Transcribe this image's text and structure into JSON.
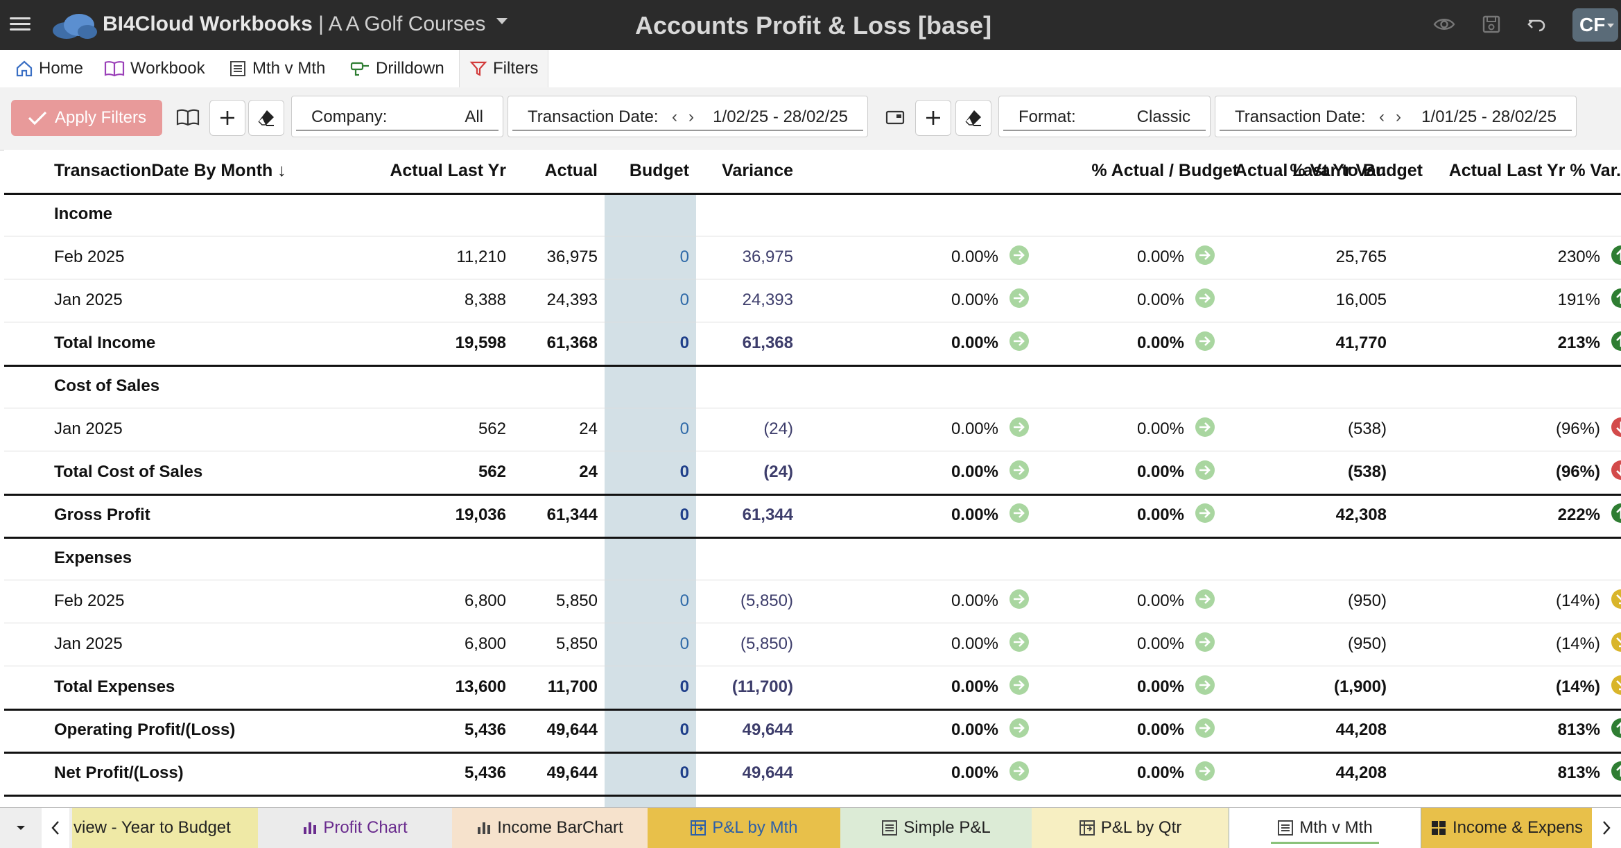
{
  "app": {
    "brand_name": "BI4Cloud Workbooks",
    "brand_separator": " | ",
    "company_name": "A A Golf Courses",
    "report_title": "Accounts Profit & Loss [base]",
    "user_initials": "CF"
  },
  "nav_tabs": [
    {
      "label": "Home",
      "icon": "home-icon"
    },
    {
      "label": "Workbook",
      "icon": "book-icon"
    },
    {
      "label": "Mth v Mth",
      "icon": "list-icon"
    },
    {
      "label": "Drilldown",
      "icon": "drill-icon"
    },
    {
      "label": "Filters",
      "icon": "filter-icon",
      "active": true
    }
  ],
  "filters": {
    "apply_label": "Apply Filters",
    "company_label": "Company:",
    "company_value": "All",
    "txn_date_label": "Transaction Date:",
    "txn_date_value": "1/02/25 - 28/02/25",
    "format_label": "Format:",
    "format_value": "Classic",
    "compare_date_label": "Transaction Date:",
    "compare_date_value": "1/01/25 - 28/02/25",
    "prev_arrow": "‹",
    "next_arrow": "›"
  },
  "table": {
    "headers": {
      "label": "TransactionDate By Month",
      "sort_arrow": "↓",
      "aly": "Actual Last Yr",
      "act": "Actual",
      "bud": "Budget",
      "var": "Variance",
      "pab": "% Actual / Budget",
      "pvb": "% Var to Budget",
      "alv": "Actual Last Yr Var.",
      "alp": "Actual Last Yr % Var."
    },
    "rows": [
      {
        "type": "section",
        "label": "Income"
      },
      {
        "type": "line",
        "label": "Feb 2025",
        "aly": "11,210",
        "act": "36,975",
        "bud": "0",
        "var": "36,975",
        "pab": "0.00%",
        "pvb": "0.00%",
        "alv": "25,765",
        "alp": "230%",
        "alp_status": "up"
      },
      {
        "type": "line",
        "label": "Jan 2025",
        "aly": "8,388",
        "act": "24,393",
        "bud": "0",
        "var": "24,393",
        "pab": "0.00%",
        "pvb": "0.00%",
        "alv": "16,005",
        "alp": "191%",
        "alp_status": "up"
      },
      {
        "type": "total",
        "label": "Total Income",
        "aly": "19,598",
        "act": "61,368",
        "bud": "0",
        "var": "61,368",
        "pab": "0.00%",
        "pvb": "0.00%",
        "alv": "41,770",
        "alp": "213%",
        "alp_status": "up"
      },
      {
        "type": "section",
        "label": "Cost of Sales"
      },
      {
        "type": "line",
        "label": "Jan 2025",
        "aly": "562",
        "act": "24",
        "bud": "0",
        "var": "(24)",
        "pab": "0.00%",
        "pvb": "0.00%",
        "alv": "(538)",
        "alp": "(96%)",
        "alp_status": "down"
      },
      {
        "type": "total",
        "label": "Total Cost of Sales",
        "aly": "562",
        "act": "24",
        "bud": "0",
        "var": "(24)",
        "pab": "0.00%",
        "pvb": "0.00%",
        "alv": "(538)",
        "alp": "(96%)",
        "alp_status": "down"
      },
      {
        "type": "total",
        "label": "Gross Profit",
        "aly": "19,036",
        "act": "61,344",
        "bud": "0",
        "var": "61,344",
        "pab": "0.00%",
        "pvb": "0.00%",
        "alv": "42,308",
        "alp": "222%",
        "alp_status": "up"
      },
      {
        "type": "section",
        "label": "Expenses"
      },
      {
        "type": "line",
        "label": "Feb 2025",
        "aly": "6,800",
        "act": "5,850",
        "bud": "0",
        "var": "(5,850)",
        "pab": "0.00%",
        "pvb": "0.00%",
        "alv": "(950)",
        "alp": "(14%)",
        "alp_status": "warn"
      },
      {
        "type": "line",
        "label": "Jan 2025",
        "aly": "6,800",
        "act": "5,850",
        "bud": "0",
        "var": "(5,850)",
        "pab": "0.00%",
        "pvb": "0.00%",
        "alv": "(950)",
        "alp": "(14%)",
        "alp_status": "warn"
      },
      {
        "type": "total",
        "label": "Total Expenses",
        "aly": "13,600",
        "act": "11,700",
        "bud": "0",
        "var": "(11,700)",
        "pab": "0.00%",
        "pvb": "0.00%",
        "alv": "(1,900)",
        "alp": "(14%)",
        "alp_status": "warn"
      },
      {
        "type": "total",
        "label": "Operating Profit/(Loss)",
        "aly": "5,436",
        "act": "49,644",
        "bud": "0",
        "var": "49,644",
        "pab": "0.00%",
        "pvb": "0.00%",
        "alv": "44,208",
        "alp": "813%",
        "alp_status": "up"
      },
      {
        "type": "total",
        "label": "Net Profit/(Loss)",
        "aly": "5,436",
        "act": "49,644",
        "bud": "0",
        "var": "49,644",
        "pab": "0.00%",
        "pvb": "0.00%",
        "alv": "44,208",
        "alp": "813%",
        "alp_status": "up"
      }
    ]
  },
  "bottom_tabs": [
    {
      "label": "view - Year to Budget",
      "icon": "",
      "bg": "#efe9a6",
      "color": "#222"
    },
    {
      "label": "Profit Chart",
      "icon": "bar-chart-icon",
      "bg": "#ebebeb",
      "color": "#6a2c8e"
    },
    {
      "label": "Income BarChart",
      "icon": "bar-chart-icon",
      "bg": "#f6e2cc",
      "color": "#222"
    },
    {
      "label": "P&L by Mth",
      "icon": "pivot-icon",
      "bg": "#e8c04a",
      "color": "#2c5fa8"
    },
    {
      "label": "Simple P&L",
      "icon": "list-icon",
      "bg": "#dcebd6",
      "color": "#222"
    },
    {
      "label": "P&L by Qtr",
      "icon": "pivot-icon",
      "bg": "#f7efc2",
      "color": "#222"
    },
    {
      "label": "Mth v Mth",
      "icon": "list-icon",
      "bg": "#ffffff",
      "color": "#222",
      "active": true
    },
    {
      "label": "Income & Expens",
      "icon": "grid-icon",
      "bg": "#e8c04a",
      "color": "#222"
    }
  ],
  "colors": {
    "topbar": "#2b2b2b",
    "apply_button": "#e89a9a",
    "budget_column": "#d3e0e6",
    "status_up": "#2e7d32",
    "status_neutral": "#a9d6a0",
    "status_down": "#d34a4a",
    "status_warn": "#d9b52a"
  }
}
